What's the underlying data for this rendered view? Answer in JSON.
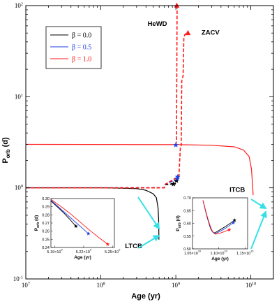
{
  "chart_data": {
    "type": "line",
    "xlabel": "Age (yr)",
    "ylabel_main": "P",
    "ylabel_sub": "orb",
    "ylabel_unit": " (d)",
    "xscale": "log",
    "yscale": "log",
    "xlim": [
      10000000,
      20000000000
    ],
    "ylim": [
      0.1,
      100
    ],
    "x_tick_labels": [
      {
        "base": "10",
        "exp": "7",
        "value": 10000000
      },
      {
        "base": "10",
        "exp": "8",
        "value": 100000000
      },
      {
        "base": "10",
        "exp": "9",
        "value": 1000000000
      },
      {
        "base": "10",
        "exp": "10",
        "value": 10000000000
      }
    ],
    "y_tick_labels": [
      {
        "base": "10",
        "exp": "-1",
        "value": 0.1
      },
      {
        "base": "10",
        "exp": "0",
        "value": 1
      },
      {
        "base": "10",
        "exp": "1",
        "value": 10
      },
      {
        "base": "10",
        "exp": "2",
        "value": 100
      }
    ],
    "legend": {
      "placement": "upper-left",
      "entries": [
        {
          "label": "β = 0.0",
          "color": "#000000"
        },
        {
          "label": "β = 0.5",
          "color": "#1f3fe0"
        },
        {
          "label": "β = 1.0",
          "color": "#ff1a1a"
        }
      ]
    },
    "series": [
      {
        "name": "β = 0.0",
        "color": "#000000",
        "dash": false,
        "points": [
          [
            10000000,
            1.0
          ],
          [
            100000000,
            1.0
          ],
          [
            200000000,
            0.99
          ],
          [
            300000000,
            0.98
          ],
          [
            400000000,
            0.94
          ],
          [
            500000000,
            0.86
          ],
          [
            550000000,
            0.78
          ],
          [
            580000000,
            0.6
          ],
          [
            590000000,
            0.45
          ],
          [
            595000000,
            0.27
          ]
        ]
      },
      {
        "name": "β = 0.0",
        "color": "#000000",
        "dash": true,
        "points": [
          [
            10000000,
            1.0
          ],
          [
            700000000,
            1.0
          ],
          [
            720000000,
            1.08
          ],
          [
            850000000,
            1.1
          ],
          [
            1000000000,
            1.1
          ]
        ]
      },
      {
        "name": "β = 0.5",
        "color": "#1f3fe0",
        "dash": true,
        "points": [
          [
            10000000,
            1.0
          ],
          [
            700000000,
            1.0
          ],
          [
            730000000,
            1.1
          ],
          [
            900000000,
            1.18
          ],
          [
            1040000000,
            1.22
          ]
        ]
      },
      {
        "name": "β = 1.0",
        "color": "#ff1a1a",
        "dash": true,
        "points": [
          [
            10000000,
            1.0
          ],
          [
            700000000,
            1.0
          ],
          [
            730000000,
            1.1
          ],
          [
            950000000,
            1.25
          ],
          [
            1050000000,
            1.28
          ],
          [
            1100000000,
            1.35
          ],
          [
            1150000000,
            2.8
          ],
          [
            1180000000,
            2.9
          ],
          [
            1200000000,
            15
          ],
          [
            1250000000,
            17
          ],
          [
            1280000000,
            45
          ],
          [
            1320000000,
            48
          ],
          [
            1400000000,
            50
          ]
        ]
      },
      {
        "name": "β = 1.0",
        "color": "#ff1a1a",
        "dash": true,
        "points": [
          [
            1000000000,
            2.95
          ],
          [
            1020000000,
            3.3
          ],
          [
            1040000000,
            100
          ]
        ]
      },
      {
        "name": "β = 1.0",
        "color": "#ff1a1a",
        "dash": false,
        "points": [
          [
            10000000,
            3.0
          ],
          [
            1000000000,
            2.98
          ],
          [
            3000000000,
            2.93
          ],
          [
            6000000000,
            2.82
          ],
          [
            8000000000,
            2.6
          ],
          [
            9500000000,
            2.2
          ],
          [
            10200000000,
            1.6
          ],
          [
            10600000000,
            1.0
          ],
          [
            10800000000,
            0.76
          ],
          [
            10900000000,
            0.66
          ]
        ]
      }
    ],
    "markers": [
      {
        "x": 930000000,
        "y": 1.1,
        "color": "#000000",
        "shape": "star"
      },
      {
        "x": 1020000000,
        "y": 1.2,
        "color": "#000000",
        "shape": "star"
      },
      {
        "x": 1040000000,
        "y": 1.26,
        "color": "#1f3fe0",
        "shape": "star"
      },
      {
        "x": 1060000000,
        "y": 1.32,
        "color": "#1f3fe0",
        "shape": "star"
      },
      {
        "x": 1000000000,
        "y": 2.95,
        "color": "#1f3fe0",
        "shape": "star"
      },
      {
        "x": 1030000000,
        "y": 100,
        "color": "#ff1a1a",
        "shape": "triangle"
      },
      {
        "x": 1450000000,
        "y": 50,
        "color": "#ff1a1a",
        "shape": "triangle"
      }
    ],
    "annotations": [
      {
        "text": "HeWD",
        "color": "#ff1a1a",
        "x": 420000000,
        "y": 60
      },
      {
        "text": "ZACV",
        "color": "#000000",
        "x": 2200000000,
        "y": 48
      },
      {
        "text": "ITCB",
        "color": "#000000",
        "x": 5200000000,
        "y": 0.9
      },
      {
        "text": "LTCB",
        "color": "#000000",
        "x": 210000000,
        "y": 0.218
      }
    ],
    "insets": [
      {
        "name": "LTCB inset",
        "xlabel": "Age (yr)",
        "ylabel_main": "P",
        "ylabel_sub": "orb",
        "ylabel_unit": " (d)",
        "xlim": [
          5186000000,
          5252000000
        ],
        "ylim": [
          0.24,
          0.3
        ],
        "x_tick_labels": [
          {
            "base": "5.19×10",
            "exp": "9",
            "value": 5190000000
          },
          {
            "base": "5.22×10",
            "exp": "9",
            "value": 5220000000
          },
          {
            "base": "5.25×10",
            "exp": "9",
            "value": 5250000000
          }
        ],
        "y_tick_labels": [
          "0.24",
          "0.25",
          "0.26",
          "0.27",
          "0.28",
          "0.29",
          "0.30"
        ],
        "y_tick_values": [
          0.24,
          0.25,
          0.26,
          0.27,
          0.28,
          0.29,
          0.3
        ],
        "series": [
          {
            "color": "#000000",
            "points": [
              [
                5186000000,
                0.297
              ],
              [
                5200000000,
                0.282
              ],
              [
                5212000000,
                0.266
              ]
            ]
          },
          {
            "color": "#1f3fe0",
            "points": [
              [
                5186000000,
                0.298
              ],
              [
                5205000000,
                0.278
              ],
              [
                5225000000,
                0.257
              ]
            ]
          },
          {
            "color": "#ff1a1a",
            "points": [
              [
                5186000000,
                0.299
              ],
              [
                5205000000,
                0.283
              ],
              [
                5225000000,
                0.262
              ],
              [
                5245000000,
                0.244
              ]
            ]
          }
        ],
        "markers": [
          {
            "x": 5212000000,
            "y": 0.266,
            "color": "#000000"
          },
          {
            "x": 5225000000,
            "y": 0.257,
            "color": "#1f3fe0"
          },
          {
            "x": 5245000000,
            "y": 0.244,
            "color": "#ff1a1a"
          }
        ]
      },
      {
        "name": "ITCB inset",
        "xlabel": "Age (yr)",
        "ylabel_main": "P",
        "ylabel_sub": "orb",
        "ylabel_unit": " (d)",
        "xlim": [
          10500000000,
          11550000000
        ],
        "ylim": [
          0.5,
          0.7
        ],
        "x_tick_labels": [
          {
            "base": "1.05×10",
            "exp": "10",
            "value": 10500000000
          },
          {
            "base": "1.10×10",
            "exp": "10",
            "value": 11000000000
          },
          {
            "base": "1.15×10",
            "exp": "10",
            "value": 11500000000
          }
        ],
        "y_tick_labels": [
          "0.50",
          "0.55",
          "0.60",
          "0.65",
          "0.70"
        ],
        "y_tick_values": [
          0.5,
          0.55,
          0.6,
          0.65,
          0.7
        ],
        "series": [
          {
            "color": "#000000",
            "points": [
              [
                10700000000,
                0.69
              ],
              [
                10780000000,
                0.62
              ],
              [
                10880000000,
                0.557
              ],
              [
                11000000000,
                0.572
              ],
              [
                11150000000,
                0.59
              ],
              [
                11300000000,
                0.612
              ]
            ]
          },
          {
            "color": "#1f3fe0",
            "points": [
              [
                10700000000,
                0.69
              ],
              [
                10790000000,
                0.615
              ],
              [
                10890000000,
                0.556
              ],
              [
                11000000000,
                0.566
              ],
              [
                11150000000,
                0.583
              ],
              [
                11280000000,
                0.603
              ]
            ]
          },
          {
            "color": "#ff1a1a",
            "points": [
              [
                10700000000,
                0.69
              ],
              [
                10800000000,
                0.61
              ],
              [
                10900000000,
                0.556
              ],
              [
                11000000000,
                0.56
              ],
              [
                11100000000,
                0.567
              ],
              [
                11200000000,
                0.575
              ]
            ]
          }
        ],
        "markers": [
          {
            "x": 11300000000,
            "y": 0.612,
            "color": "#000000"
          },
          {
            "x": 11280000000,
            "y": 0.603,
            "color": "#1f3fe0"
          },
          {
            "x": 11200000000,
            "y": 0.575,
            "color": "#ff1a1a"
          }
        ]
      }
    ],
    "arrow_color": "#36e0e8"
  }
}
